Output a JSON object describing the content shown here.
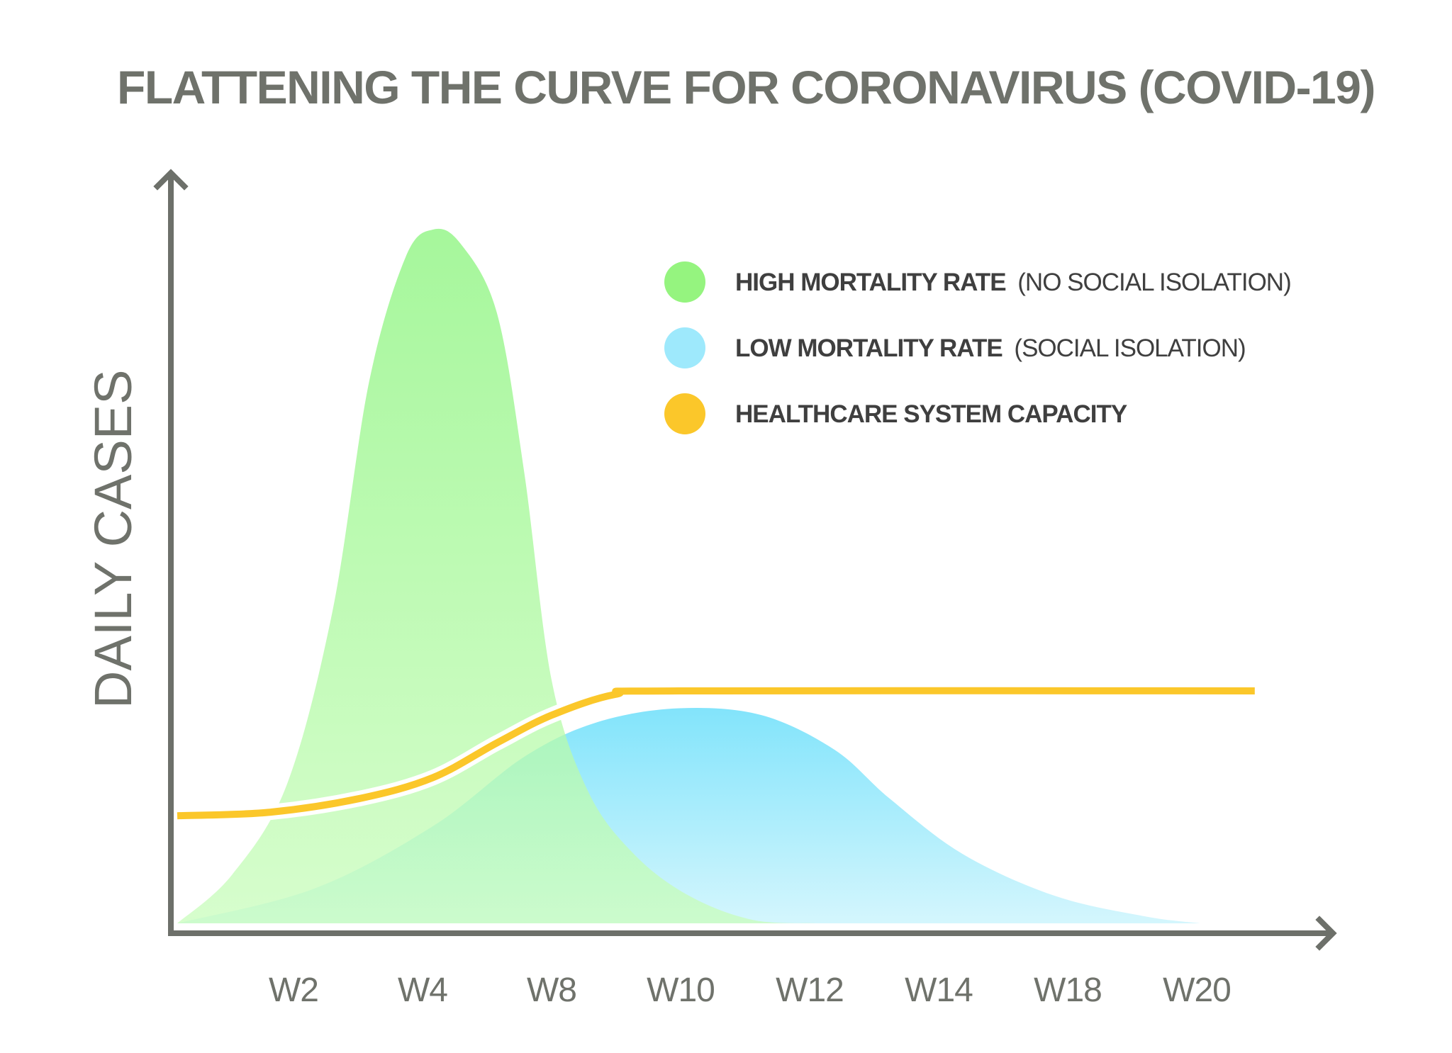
{
  "chart_data": {
    "type": "area",
    "title": "FLATTENING THE CURVE FOR CORONAVIRUS (COVID-19)",
    "ylabel": "DAILY CASES",
    "xlabel": "",
    "x_ticks": [
      "W2",
      "W4",
      "W8",
      "W10",
      "W12",
      "W14",
      "W18",
      "W20"
    ],
    "series": [
      {
        "name": "HIGH MORTALITY RATE",
        "qualifier": "(NO SOCIAL ISOLATION)",
        "color": "#8cf47a",
        "points": [
          [
            1,
            0
          ],
          [
            1.6,
            0.07
          ],
          [
            2.2,
            0.2
          ],
          [
            2.7,
            0.45
          ],
          [
            3.1,
            0.78
          ],
          [
            3.5,
            0.96
          ],
          [
            3.8,
            1.0
          ],
          [
            4.1,
            0.98
          ],
          [
            4.5,
            0.88
          ],
          [
            4.8,
            0.65
          ],
          [
            5.1,
            0.35
          ],
          [
            5.5,
            0.19
          ],
          [
            6,
            0.1
          ],
          [
            6.6,
            0.04
          ],
          [
            7.3,
            0.005
          ],
          [
            8,
            0
          ]
        ]
      },
      {
        "name": "LOW MORTALITY RATE",
        "qualifier": "(SOCIAL ISOLATION)",
        "color": "#8ae6fb",
        "points": [
          [
            1,
            0
          ],
          [
            2.5,
            0.05
          ],
          [
            3.8,
            0.14
          ],
          [
            4.8,
            0.24
          ],
          [
            5.6,
            0.29
          ],
          [
            6.5,
            0.31
          ],
          [
            7.4,
            0.3
          ],
          [
            8.2,
            0.25
          ],
          [
            8.8,
            0.18
          ],
          [
            9.6,
            0.1
          ],
          [
            10.6,
            0.04
          ],
          [
            11.6,
            0.01
          ],
          [
            12.2,
            0
          ]
        ]
      },
      {
        "name": "HEALTHCARE SYSTEM CAPACITY",
        "color": "#fbc72a",
        "points": [
          [
            1,
            0.155
          ],
          [
            2,
            0.16
          ],
          [
            3,
            0.18
          ],
          [
            3.8,
            0.21
          ],
          [
            4.5,
            0.26
          ],
          [
            5.1,
            0.3
          ],
          [
            5.8,
            0.33
          ],
          [
            6.5,
            0.335
          ],
          [
            12.8,
            0.335
          ]
        ]
      }
    ],
    "xlim": [
      1,
      13.5
    ],
    "ylim": [
      0,
      1.05
    ],
    "grid": false,
    "legend_position": "top-right"
  }
}
